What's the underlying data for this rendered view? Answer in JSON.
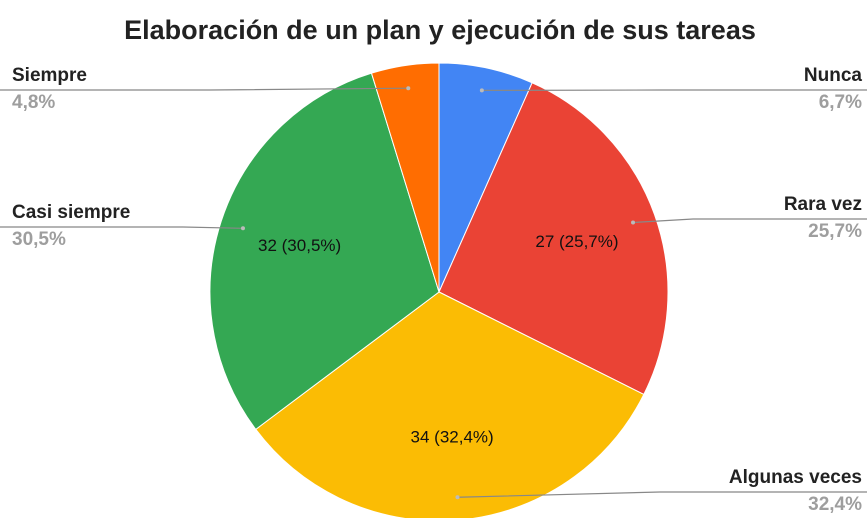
{
  "chart_data": {
    "type": "pie",
    "title": "Elaboración de un plan y ejecución de sus tareas",
    "categories": [
      "Nunca",
      "Rara vez",
      "Algunas veces",
      "Casi siempre",
      "Siempre"
    ],
    "values": [
      7,
      27,
      34,
      32,
      5
    ],
    "value_labels": [
      null,
      "27 (25,7%)",
      "34 (32,4%)",
      "32 (30,5%)",
      null
    ],
    "percent_labels": [
      "6,7%",
      "25,7%",
      "32,4%",
      "30,5%",
      "4,8%"
    ],
    "colors": [
      "#4285f4",
      "#ea4335",
      "#fbbc04",
      "#34a853",
      "#ff6d01"
    ]
  }
}
